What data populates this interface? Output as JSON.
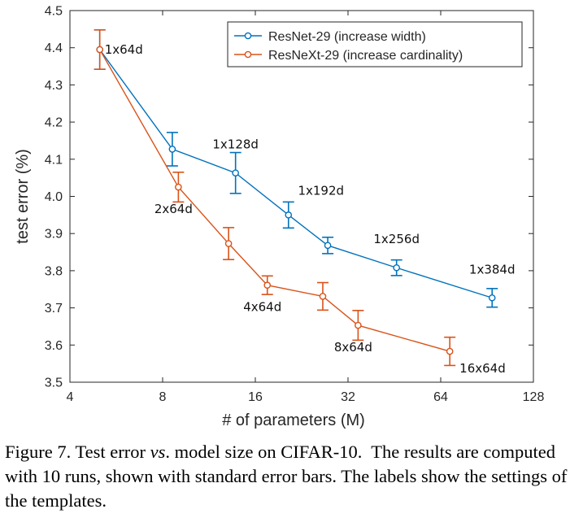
{
  "chart_data": {
    "type": "line",
    "xlabel": "# of parameters (M)",
    "ylabel": "test error (%)",
    "x_scale": "log2",
    "xlim": [
      4,
      128
    ],
    "ylim": [
      3.5,
      4.5
    ],
    "x_ticks": [
      4,
      8,
      16,
      32,
      64,
      128
    ],
    "x_tick_labels": [
      "4",
      "8",
      "16",
      "32",
      "64",
      "128"
    ],
    "y_ticks": [
      3.5,
      3.6,
      3.7,
      3.8,
      3.9,
      4.0,
      4.1,
      4.2,
      4.3,
      4.4,
      4.5
    ],
    "y_tick_labels": [
      "3.5",
      "3.6",
      "3.7",
      "3.8",
      "3.9",
      "4.0",
      "4.1",
      "4.2",
      "4.3",
      "4.4",
      "4.5"
    ],
    "grid": false,
    "legend_position": "top-right",
    "series": [
      {
        "name": "ResNet-29 (increase width)",
        "color": "#0072BD",
        "x": [
          5.0,
          8.6,
          13.8,
          20.5,
          27.5,
          46.0,
          94.0
        ],
        "y": [
          4.395,
          4.127,
          4.063,
          3.95,
          3.868,
          3.808,
          3.727
        ],
        "err": [
          0.053,
          0.045,
          0.055,
          0.035,
          0.022,
          0.021,
          0.025
        ]
      },
      {
        "name": "ResNeXt-29 (increase cardinality)",
        "color": "#D95319",
        "x": [
          5.0,
          9.0,
          13.1,
          17.5,
          26.5,
          34.5,
          68.5
        ],
        "y": [
          4.395,
          4.025,
          3.873,
          3.761,
          3.731,
          3.653,
          3.583
        ],
        "err": [
          0.053,
          0.04,
          0.043,
          0.025,
          0.037,
          0.04,
          0.038
        ]
      }
    ],
    "annotations": [
      {
        "text": "1x64d",
        "x": 5.0,
        "y": 4.395,
        "anchor": "right"
      },
      {
        "text": "1x128d",
        "x": 13.8,
        "y": 4.063,
        "anchor": "above"
      },
      {
        "text": "1x192d",
        "x": 20.5,
        "y": 3.95,
        "anchor": "above-right"
      },
      {
        "text": "1x256d",
        "x": 46.0,
        "y": 3.808,
        "anchor": "above"
      },
      {
        "text": "1x384d",
        "x": 94.0,
        "y": 3.727,
        "anchor": "above"
      },
      {
        "text": "2x64d",
        "x": 9.0,
        "y": 4.025,
        "anchor": "below"
      },
      {
        "text": "4x64d",
        "x": 17.5,
        "y": 3.761,
        "anchor": "below"
      },
      {
        "text": "8x64d",
        "x": 34.5,
        "y": 3.653,
        "anchor": "below"
      },
      {
        "text": "16x64d",
        "x": 68.5,
        "y": 3.583,
        "anchor": "right-below"
      }
    ]
  },
  "caption": {
    "prefix": "Figure 7. Test error ",
    "vs": "vs",
    "suffix": ". model size on CIFAR-10.  The results are computed with 10 runs, shown with standard error bars. The labels show the settings of the templates."
  }
}
